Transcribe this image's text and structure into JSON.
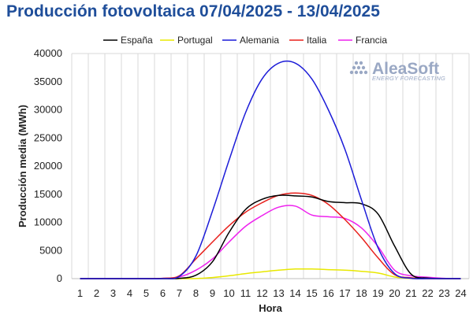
{
  "page": {
    "title": "Producción fotovoltaica 07/04/2025 - 13/04/2025",
    "logo_name": "AleaSoft",
    "logo_tagline": "ENERGY FORECASTING"
  },
  "chart_data": {
    "type": "line",
    "title": "Producción fotovoltaica 07/04/2025 - 13/04/2025",
    "xlabel": "Hora",
    "ylabel": "Producción media (MWh)",
    "x": [
      1,
      2,
      3,
      4,
      5,
      6,
      7,
      8,
      9,
      10,
      11,
      12,
      13,
      14,
      15,
      16,
      17,
      18,
      19,
      20,
      21,
      22,
      23,
      24
    ],
    "ylim": [
      0,
      40000
    ],
    "yticks": [
      0,
      5000,
      10000,
      15000,
      20000,
      25000,
      30000,
      35000,
      40000
    ],
    "grid": "vertical",
    "legend": "top",
    "series": [
      {
        "name": "España",
        "color": "#000000",
        "values": [
          0,
          0,
          0,
          0,
          0,
          0,
          50,
          600,
          3000,
          8200,
          12300,
          14100,
          14800,
          14700,
          14500,
          13700,
          13500,
          13300,
          11500,
          5800,
          800,
          100,
          0,
          0
        ]
      },
      {
        "name": "Portugal",
        "color": "#e8e800",
        "values": [
          0,
          0,
          0,
          0,
          0,
          0,
          0,
          20,
          200,
          500,
          900,
          1200,
          1500,
          1700,
          1700,
          1600,
          1500,
          1300,
          1000,
          300,
          20,
          0,
          0,
          0
        ]
      },
      {
        "name": "Alemania",
        "color": "#1c1cd8",
        "values": [
          0,
          0,
          0,
          0,
          0,
          0,
          400,
          4000,
          12000,
          21000,
          29500,
          35500,
          38300,
          38300,
          35500,
          30000,
          23000,
          14000,
          5500,
          900,
          50,
          0,
          0,
          0
        ]
      },
      {
        "name": "Italia",
        "color": "#e8201c",
        "values": [
          0,
          0,
          0,
          0,
          0,
          50,
          500,
          3500,
          6500,
          9400,
          11800,
          13500,
          14800,
          15200,
          14800,
          13200,
          10500,
          7300,
          3700,
          700,
          150,
          0,
          0,
          0
        ]
      },
      {
        "name": "Francia",
        "color": "#ee22ee",
        "values": [
          0,
          0,
          0,
          0,
          0,
          50,
          300,
          1500,
          3500,
          6500,
          9300,
          11200,
          12700,
          12900,
          11300,
          11000,
          10700,
          9000,
          5700,
          1500,
          500,
          250,
          50,
          0
        ]
      }
    ]
  }
}
